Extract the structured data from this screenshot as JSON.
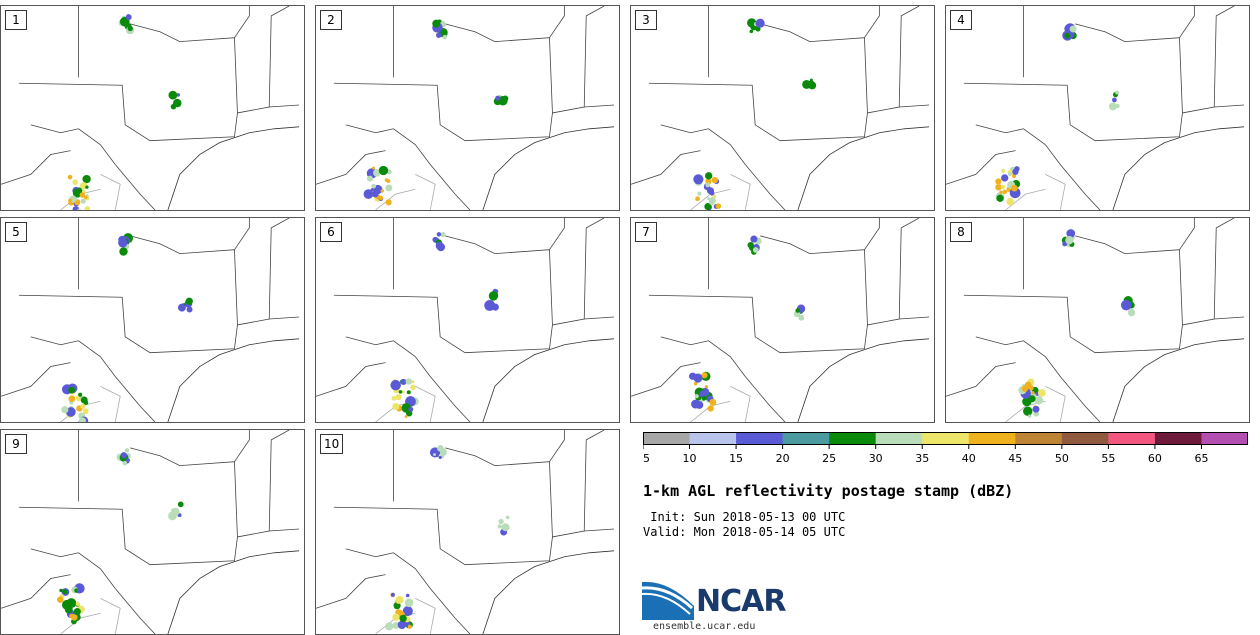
{
  "panels": [
    {
      "label": "1"
    },
    {
      "label": "2"
    },
    {
      "label": "3"
    },
    {
      "label": "4"
    },
    {
      "label": "5"
    },
    {
      "label": "6"
    },
    {
      "label": "7"
    },
    {
      "label": "8"
    },
    {
      "label": "9"
    },
    {
      "label": "10"
    }
  ],
  "colorbar": {
    "ticks": [
      "5",
      "10",
      "15",
      "20",
      "25",
      "30",
      "35",
      "40",
      "45",
      "50",
      "55",
      "60",
      "65"
    ],
    "colors": [
      "#a6a6a6",
      "#b8c4ec",
      "#5a5ad6",
      "#4b9aa0",
      "#0a8a0a",
      "#b9dcb9",
      "#ede56a",
      "#efb21e",
      "#bc8434",
      "#8f5a3e",
      "#f2577f",
      "#6e1a3a",
      "#b24fb0"
    ]
  },
  "title": "1-km AGL reflectivity postage stamp (dBZ)",
  "init": " Init: Sun 2018-05-13 00 UTC",
  "valid": "Valid: Mon 2018-05-14 05 UTC",
  "logo": {
    "name": "NCAR",
    "url": "ensemble.ucar.edu"
  }
}
